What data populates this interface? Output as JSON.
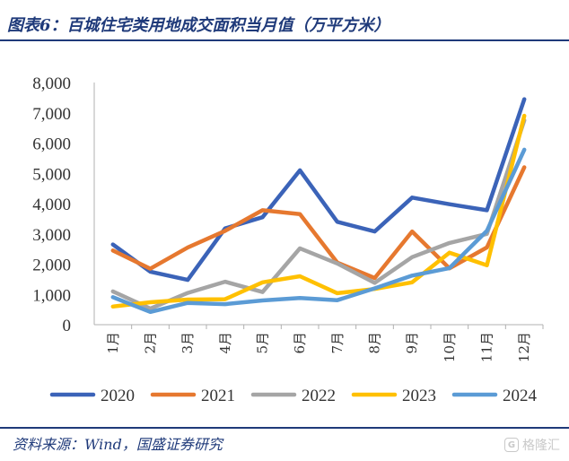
{
  "title": "图表6：百城住宅类用地成交面积当月值（万平方米）",
  "source": "资料来源：Wind，国盛证券研究",
  "watermark": {
    "icon": "gelonghui-logo-icon",
    "logo_glyph": "G",
    "text": "格隆汇"
  },
  "chart_data": {
    "type": "line",
    "categories": [
      "1月",
      "2月",
      "3月",
      "4月",
      "5月",
      "6月",
      "7月",
      "8月",
      "9月",
      "10月",
      "11月",
      "12月"
    ],
    "ylim": [
      0,
      8000
    ],
    "yticks": [
      "0",
      "1,000",
      "2,000",
      "3,000",
      "4,000",
      "5,000",
      "6,000",
      "7,000",
      "8,000"
    ],
    "ytick_values": [
      0,
      1000,
      2000,
      3000,
      4000,
      5000,
      6000,
      7000,
      8000
    ],
    "grid": false,
    "legend_position": "bottom",
    "series": [
      {
        "name": "2020",
        "color": "#3b63b8",
        "values": [
          2650,
          1750,
          1480,
          3180,
          3550,
          5100,
          3400,
          3080,
          4200,
          3980,
          3780,
          7450
        ]
      },
      {
        "name": "2021",
        "color": "#e6782f",
        "values": [
          2450,
          1850,
          2550,
          3100,
          3780,
          3650,
          2050,
          1540,
          3080,
          1860,
          2550,
          5200
        ]
      },
      {
        "name": "2022",
        "color": "#a5a5a5",
        "values": [
          1100,
          530,
          1050,
          1420,
          1080,
          2520,
          2020,
          1380,
          2230,
          2700,
          3000,
          6750
        ]
      },
      {
        "name": "2023",
        "color": "#ffc000",
        "values": [
          600,
          740,
          830,
          840,
          1400,
          1600,
          1040,
          1180,
          1400,
          2380,
          1960,
          6900
        ]
      },
      {
        "name": "2024",
        "color": "#5b9bd5",
        "values": [
          910,
          420,
          720,
          680,
          800,
          880,
          810,
          1200,
          1620,
          1870,
          3100,
          5780
        ]
      }
    ]
  }
}
